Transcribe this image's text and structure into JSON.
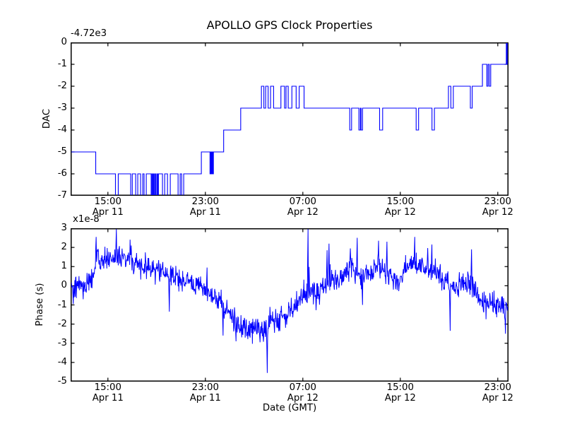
{
  "figure": {
    "background": "#ffffff",
    "line_color": "#0000ff",
    "axis_color": "#000000",
    "xlim_hours": [
      11.94,
      47.88
    ],
    "x_unit": "hours since Apr 11 00:00 (GMT)",
    "xticks": [
      {
        "t": 15,
        "time": "15:00",
        "date": "Apr 11"
      },
      {
        "t": 23,
        "time": "23:00",
        "date": "Apr 11"
      },
      {
        "t": 31,
        "time": "07:00",
        "date": "Apr 12"
      },
      {
        "t": 39,
        "time": "15:00",
        "date": "Apr 12"
      },
      {
        "t": 47,
        "time": "23:00",
        "date": "Apr 12"
      }
    ]
  },
  "chart_data": [
    {
      "type": "line",
      "subtype": "step",
      "title": "APOLLO GPS Clock Properties",
      "ylabel": "DAC",
      "offset_label": "-4.72e3",
      "ylim": [
        -7,
        0
      ],
      "yticks": [
        0,
        -1,
        -2,
        -3,
        -4,
        -5,
        -6,
        -7
      ],
      "grid": false,
      "legend": false,
      "steps": [
        [
          11.94,
          -5
        ],
        [
          14.0,
          -6
        ],
        [
          15.62,
          -7
        ],
        [
          15.85,
          -6
        ],
        [
          16.87,
          -7
        ],
        [
          17.0,
          -6
        ],
        [
          17.28,
          -7
        ],
        [
          17.45,
          -6
        ],
        [
          17.68,
          -7
        ],
        [
          17.86,
          -6
        ],
        [
          17.97,
          -7
        ],
        [
          18.15,
          -6
        ],
        [
          18.55,
          -7
        ],
        [
          18.62,
          -6
        ],
        [
          18.68,
          -7
        ],
        [
          18.75,
          -6
        ],
        [
          18.8,
          -7
        ],
        [
          18.88,
          -6
        ],
        [
          18.93,
          -7
        ],
        [
          19.02,
          -6
        ],
        [
          19.08,
          -7
        ],
        [
          19.15,
          -6
        ],
        [
          19.48,
          -7
        ],
        [
          19.66,
          -6
        ],
        [
          19.89,
          -7
        ],
        [
          20.12,
          -6
        ],
        [
          20.76,
          -7
        ],
        [
          20.93,
          -6
        ],
        [
          21.05,
          -7
        ],
        [
          21.22,
          -6
        ],
        [
          22.67,
          -5
        ],
        [
          23.38,
          -6
        ],
        [
          23.44,
          -5
        ],
        [
          23.5,
          -6
        ],
        [
          23.55,
          -5
        ],
        [
          23.6,
          -6
        ],
        [
          23.66,
          -5
        ],
        [
          24.5,
          -4
        ],
        [
          25.9,
          -3
        ],
        [
          27.6,
          -2
        ],
        [
          27.8,
          -3
        ],
        [
          27.95,
          -2
        ],
        [
          28.15,
          -3
        ],
        [
          28.35,
          -2
        ],
        [
          28.6,
          -3
        ],
        [
          29.2,
          -2
        ],
        [
          29.5,
          -3
        ],
        [
          29.62,
          -2
        ],
        [
          29.8,
          -3
        ],
        [
          30.1,
          -2
        ],
        [
          30.45,
          -3
        ],
        [
          30.7,
          -2
        ],
        [
          31.1,
          -3
        ],
        [
          34.85,
          -4
        ],
        [
          35.0,
          -3
        ],
        [
          35.6,
          -4
        ],
        [
          35.72,
          -3
        ],
        [
          35.78,
          -4
        ],
        [
          35.9,
          -3
        ],
        [
          37.3,
          -4
        ],
        [
          37.55,
          -3
        ],
        [
          40.3,
          -4
        ],
        [
          40.5,
          -3
        ],
        [
          41.6,
          -4
        ],
        [
          41.8,
          -3
        ],
        [
          42.95,
          -2
        ],
        [
          43.15,
          -3
        ],
        [
          43.35,
          -2
        ],
        [
          44.75,
          -3
        ],
        [
          44.9,
          -2
        ],
        [
          45.74,
          -1
        ],
        [
          46.1,
          -2
        ],
        [
          46.2,
          -1
        ],
        [
          46.3,
          -2
        ],
        [
          46.42,
          -1
        ],
        [
          47.7,
          0
        ],
        [
          47.74,
          -1
        ],
        [
          47.78,
          0
        ]
      ]
    },
    {
      "type": "line",
      "subtype": "noisy",
      "ylabel": "Phase (s)",
      "multiplier_label": "x1e-8",
      "xlabel": "Date (GMT)",
      "ylim": [
        -5,
        3
      ],
      "yticks": [
        3,
        2,
        1,
        0,
        -1,
        -2,
        -3,
        -4,
        -5
      ],
      "grid": false,
      "legend": false,
      "noise_sigma": 0.3,
      "n_points": 1150,
      "trend": [
        [
          11.94,
          0.2
        ],
        [
          12.2,
          -0.1
        ],
        [
          12.5,
          0.0
        ],
        [
          13.0,
          0.05
        ],
        [
          13.5,
          0.15
        ],
        [
          13.8,
          0.6
        ],
        [
          14.0,
          1.5
        ],
        [
          14.15,
          1.9
        ],
        [
          14.3,
          0.7
        ],
        [
          14.5,
          1.2
        ],
        [
          14.7,
          1.5
        ],
        [
          15.0,
          1.4
        ],
        [
          15.3,
          1.3
        ],
        [
          15.7,
          1.45
        ],
        [
          16.0,
          1.3
        ],
        [
          16.3,
          1.45
        ],
        [
          16.6,
          1.3
        ],
        [
          17.0,
          1.1
        ],
        [
          17.3,
          1.25
        ],
        [
          17.6,
          1.1
        ],
        [
          18.0,
          1.0
        ],
        [
          18.3,
          1.05
        ],
        [
          18.6,
          0.85
        ],
        [
          19.0,
          0.9
        ],
        [
          19.3,
          0.75
        ],
        [
          19.6,
          0.65
        ],
        [
          20.0,
          0.5
        ],
        [
          20.3,
          0.45
        ],
        [
          20.6,
          0.5
        ],
        [
          21.0,
          0.35
        ],
        [
          21.4,
          0.3
        ],
        [
          21.8,
          0.25
        ],
        [
          22.2,
          0.1
        ],
        [
          22.6,
          0.0
        ],
        [
          23.0,
          -0.25
        ],
        [
          23.4,
          -0.4
        ],
        [
          23.8,
          -0.6
        ],
        [
          24.2,
          -0.8
        ],
        [
          24.6,
          -1.1
        ],
        [
          25.0,
          -1.5
        ],
        [
          25.4,
          -1.8
        ],
        [
          25.8,
          -2.0
        ],
        [
          26.2,
          -2.15
        ],
        [
          26.6,
          -2.2
        ],
        [
          27.0,
          -2.2
        ],
        [
          27.4,
          -2.25
        ],
        [
          27.8,
          -2.2
        ],
        [
          28.2,
          -2.1
        ],
        [
          28.6,
          -1.9
        ],
        [
          29.0,
          -1.75
        ],
        [
          29.4,
          -1.6
        ],
        [
          29.8,
          -1.35
        ],
        [
          30.2,
          -1.1
        ],
        [
          30.6,
          -0.85
        ],
        [
          31.0,
          -0.6
        ],
        [
          31.4,
          -0.3
        ],
        [
          31.8,
          -0.25
        ],
        [
          32.2,
          -0.4
        ],
        [
          32.6,
          -0.1
        ],
        [
          33.0,
          0.15
        ],
        [
          33.4,
          0.3
        ],
        [
          33.8,
          0.25
        ],
        [
          34.2,
          0.35
        ],
        [
          34.6,
          0.7
        ],
        [
          35.0,
          1.0
        ],
        [
          35.3,
          0.8
        ],
        [
          35.8,
          0.4
        ],
        [
          36.2,
          0.55
        ],
        [
          36.6,
          0.75
        ],
        [
          37.0,
          0.95
        ],
        [
          37.4,
          1.0
        ],
        [
          37.8,
          0.7
        ],
        [
          38.2,
          0.45
        ],
        [
          38.6,
          0.3
        ],
        [
          39.0,
          0.35
        ],
        [
          39.4,
          0.8
        ],
        [
          39.8,
          1.05
        ],
        [
          40.2,
          1.15
        ],
        [
          40.6,
          1.0
        ],
        [
          41.0,
          0.9
        ],
        [
          41.4,
          1.0
        ],
        [
          41.8,
          0.85
        ],
        [
          42.2,
          0.55
        ],
        [
          42.6,
          0.3
        ],
        [
          43.0,
          0.0
        ],
        [
          43.4,
          -0.15
        ],
        [
          43.8,
          -0.05
        ],
        [
          44.2,
          0.1
        ],
        [
          44.6,
          0.2
        ],
        [
          45.0,
          -0.2
        ],
        [
          45.4,
          -0.55
        ],
        [
          45.8,
          -0.85
        ],
        [
          46.2,
          -1.0
        ],
        [
          46.6,
          -1.05
        ],
        [
          47.0,
          -0.9
        ],
        [
          47.4,
          -1.05
        ],
        [
          47.88,
          -1.1
        ]
      ],
      "spikes": [
        [
          12.15,
          -0.95
        ],
        [
          14.05,
          2.55
        ],
        [
          15.7,
          2.95
        ],
        [
          16.9,
          2.1
        ],
        [
          20.05,
          -1.35
        ],
        [
          23.15,
          0.95
        ],
        [
          24.45,
          -2.6
        ],
        [
          25.5,
          -2.9
        ],
        [
          27.5,
          -2.95
        ],
        [
          28.07,
          -4.55
        ],
        [
          31.42,
          2.95
        ],
        [
          33.0,
          1.85
        ],
        [
          33.15,
          2.2
        ],
        [
          34.9,
          1.95
        ],
        [
          35.45,
          2.5
        ],
        [
          35.9,
          -1.0
        ],
        [
          37.2,
          2.35
        ],
        [
          37.9,
          2.3
        ],
        [
          40.2,
          2.55
        ],
        [
          41.6,
          2.15
        ],
        [
          43.1,
          -2.35
        ],
        [
          44.85,
          1.9
        ],
        [
          47.62,
          -2.5
        ]
      ]
    }
  ]
}
